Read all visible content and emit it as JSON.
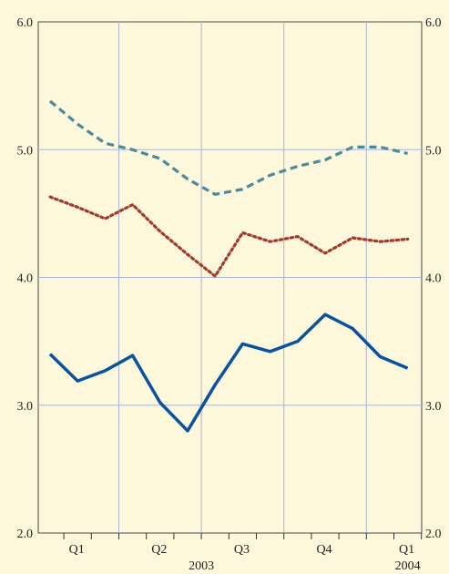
{
  "chart_data": {
    "type": "line",
    "title": "",
    "xlabel": "",
    "ylabel": "",
    "ylim": [
      2.0,
      6.0
    ],
    "y_ticks": [
      "2.0",
      "3.0",
      "4.0",
      "5.0",
      "6.0"
    ],
    "y_tick_values": [
      2.0,
      3.0,
      4.0,
      5.0,
      6.0
    ],
    "x_period_labels": [
      "Q1",
      "Q2",
      "Q3",
      "Q4",
      "Q1"
    ],
    "x_year_labels": [
      "2003",
      "2004"
    ],
    "x_month_ticks": 15,
    "grid": true,
    "right_axis_mirrors_left": true,
    "background": "#fdf8dc",
    "grid_color": "#a9b3d9",
    "series": [
      {
        "color": "#4a8a9c",
        "style": "dashed",
        "values": [
          5.38,
          5.2,
          5.05,
          5.0,
          4.93,
          4.77,
          4.65,
          4.69,
          4.8,
          4.87,
          4.92,
          5.02,
          5.02,
          4.97
        ]
      },
      {
        "color": "#a03a2c",
        "style": "dotted",
        "values": [
          4.63,
          4.55,
          4.46,
          4.57,
          4.36,
          4.18,
          4.01,
          4.35,
          4.28,
          4.32,
          4.19,
          4.31,
          4.28,
          4.3
        ]
      },
      {
        "color": "#0a52a0",
        "style": "solid",
        "values": [
          3.4,
          3.19,
          3.27,
          3.39,
          3.02,
          2.8,
          3.16,
          3.48,
          3.42,
          3.5,
          3.71,
          3.6,
          3.38,
          3.29
        ]
      }
    ]
  }
}
